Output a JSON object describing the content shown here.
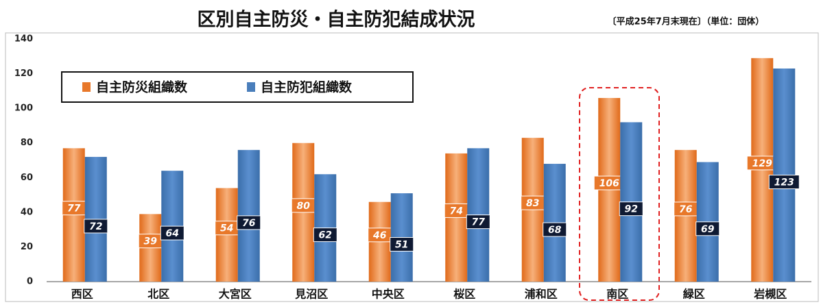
{
  "chart_data": {
    "type": "bar",
    "title": "区別自主防災・自主防犯結成状況",
    "subtitle": "〔平成25年7月末現在〕（単位：団体）",
    "categories": [
      "西区",
      "北区",
      "大宮区",
      "見沼区",
      "中央区",
      "桜区",
      "浦和区",
      "南区",
      "緑区",
      "岩槻区"
    ],
    "series": [
      {
        "name": "自主防災組織数",
        "color": "#e8782a",
        "values": [
          77,
          39,
          54,
          80,
          46,
          74,
          83,
          106,
          76,
          129
        ]
      },
      {
        "name": "自主防犯組織数",
        "color": "#4a7ebb",
        "values": [
          72,
          64,
          76,
          62,
          51,
          77,
          68,
          92,
          69,
          123
        ]
      }
    ],
    "ylim": [
      0,
      140
    ],
    "yticks": [
      0,
      20,
      40,
      60,
      80,
      100,
      120,
      140
    ],
    "grid": false,
    "legend": "upper left"
  }
}
